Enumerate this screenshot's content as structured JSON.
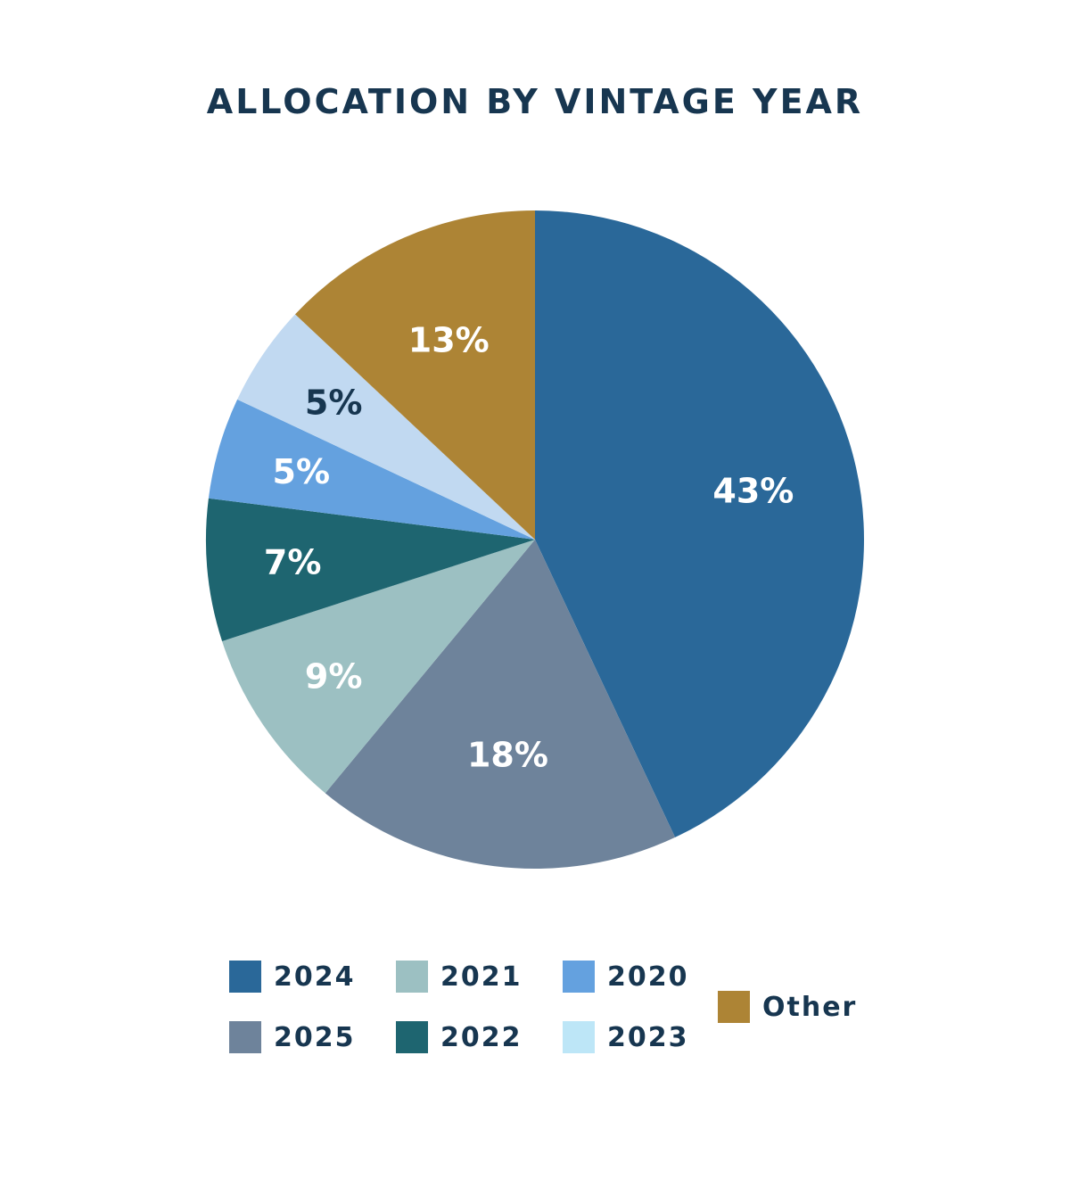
{
  "chart_data": {
    "type": "pie",
    "title": "ALLOCATION BY VINTAGE YEAR",
    "slices": [
      {
        "name": "2024",
        "value": 43,
        "label": "43%",
        "color": "#2A6899",
        "label_color": "#FFFFFF"
      },
      {
        "name": "2025",
        "value": 18,
        "label": "18%",
        "color": "#6E839B",
        "label_color": "#FFFFFF"
      },
      {
        "name": "2021",
        "value": 9,
        "label": "9%",
        "color": "#9CC0C2",
        "label_color": "#FFFFFF"
      },
      {
        "name": "2022",
        "value": 7,
        "label": "7%",
        "color": "#1E6570",
        "label_color": "#FFFFFF"
      },
      {
        "name": "2020",
        "value": 5,
        "label": "5%",
        "color": "#64A1DF",
        "label_color": "#FFFFFF"
      },
      {
        "name": "2023",
        "value": 5,
        "label": "5%",
        "color": "#C1D9F1",
        "label_color": "#173650"
      },
      {
        "name": "Other",
        "value": 13,
        "label": "13%",
        "color": "#AD8435",
        "label_color": "#FFFFFF"
      }
    ],
    "legend": [
      {
        "name": "2024",
        "color": "#2A6899"
      },
      {
        "name": "2025",
        "color": "#6E839B"
      },
      {
        "name": "2021",
        "color": "#9CC0C2"
      },
      {
        "name": "2022",
        "color": "#1E6570"
      },
      {
        "name": "2020",
        "color": "#64A1DF"
      },
      {
        "name": "2023",
        "color": "#BDE6F7"
      },
      {
        "name": "Other",
        "color": "#AD8435"
      }
    ],
    "legend_placement": "bottom"
  }
}
